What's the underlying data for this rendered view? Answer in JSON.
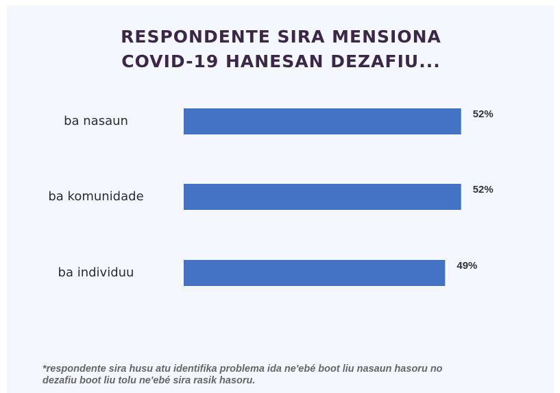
{
  "chart_data": {
    "type": "bar",
    "orientation": "horizontal",
    "title": "RESPONDENTE SIRA MENSIONA COVID-19 HANESAN DEZAFIU...",
    "categories": [
      "ba nasaun",
      "ba komunidade",
      "ba individuu"
    ],
    "values": [
      52,
      52,
      49
    ],
    "value_labels": [
      "52%",
      "52%",
      "49%"
    ],
    "color": "#4472c4",
    "xlim": [
      0,
      60
    ],
    "footnote": "*respondente sira husu atu identifika problema ida ne'ebé boot liu nasaun hasoru no dezafiu boot liu tolu ne'ebé sira rasik hasoru."
  }
}
